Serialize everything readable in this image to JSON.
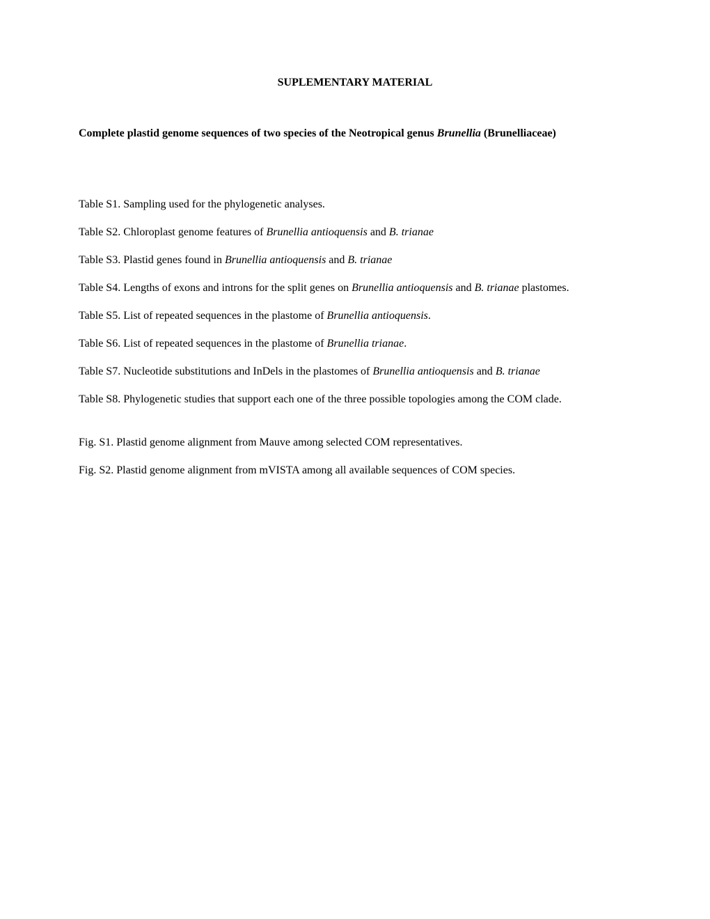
{
  "header": {
    "title": "SUPLEMENTARY MATERIAL"
  },
  "article": {
    "title_part1": "Complete plastid genome sequences of two species of the Neotropical genus ",
    "title_italic": "Brunellia",
    "title_part2": " (Brunelliaceae)"
  },
  "tables": {
    "s1": {
      "prefix": "Table S1. ",
      "text": "Sampling used for the phylogenetic analyses."
    },
    "s2": {
      "prefix": "Table S2. ",
      "text1": "Chloroplast genome features of ",
      "italic1": "Brunellia antioquensis",
      "text2": " and ",
      "italic2": "B. trianae"
    },
    "s3": {
      "prefix": "Table S3. ",
      "text1": "Plastid genes found in ",
      "italic1": "Brunellia antioquensis",
      "text2": " and ",
      "italic2": "B. trianae"
    },
    "s4": {
      "prefix": "Table S4. ",
      "text1": "Lengths of exons and introns for the split genes on ",
      "italic1": "Brunellia antioquensis",
      "text2": " and ",
      "italic2": "B. trianae",
      "text3": " plastomes."
    },
    "s5": {
      "prefix": "Table S5. ",
      "text1": "List of repeated sequences in the plastome of ",
      "italic1": "Brunellia antioquensis",
      "text2": "."
    },
    "s6": {
      "prefix": "Table S6. ",
      "text1": "List of repeated sequences in the plastome of ",
      "italic1": "Brunellia trianae",
      "text2": "."
    },
    "s7": {
      "prefix": "Table S7. ",
      "text1": "Nucleotide substitutions and InDels in the plastomes of ",
      "italic1": "Brunellia antioquensis",
      "text2": " and ",
      "italic2": "B. trianae"
    },
    "s8": {
      "prefix": "Table S8. ",
      "text": "Phylogenetic studies that support each one of the three possible topologies among the COM clade."
    }
  },
  "figures": {
    "s1": {
      "prefix": "Fig. S1. ",
      "text": "Plastid genome alignment from Mauve among selected COM representatives."
    },
    "s2": {
      "prefix": "Fig. S2. ",
      "text": "Plastid genome alignment from mVISTA among all available sequences of COM species."
    }
  }
}
